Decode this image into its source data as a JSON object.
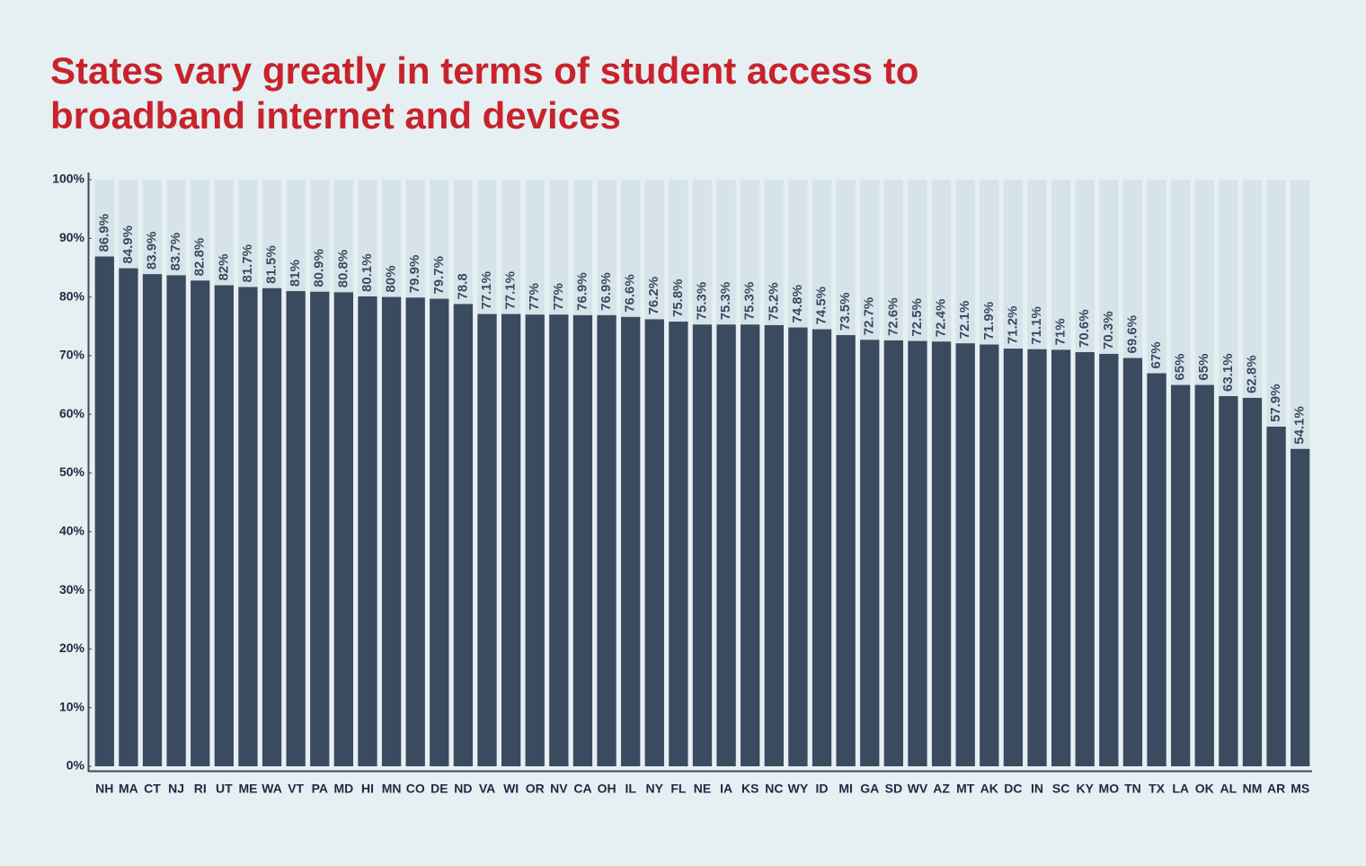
{
  "chart_data": {
    "type": "bar",
    "title": "States vary greatly in terms of student access to broadband internet and devices",
    "categories": [
      "NH",
      "MA",
      "CT",
      "NJ",
      "RI",
      "UT",
      "ME",
      "WA",
      "VT",
      "PA",
      "MD",
      "HI",
      "MN",
      "CO",
      "DE",
      "ND",
      "VA",
      "WI",
      "OR",
      "NV",
      "CA",
      "OH",
      "IL",
      "NY",
      "FL",
      "NE",
      "IA",
      "KS",
      "NC",
      "WY",
      "ID",
      "MI",
      "GA",
      "SD",
      "WV",
      "AZ",
      "MT",
      "AK",
      "DC",
      "IN",
      "SC",
      "KY",
      "MO",
      "TN",
      "TX",
      "LA",
      "OK",
      "AL",
      "NM",
      "AR",
      "MS"
    ],
    "values": [
      86.9,
      84.9,
      83.9,
      83.7,
      82.8,
      82,
      81.7,
      81.5,
      81,
      80.9,
      80.8,
      80.1,
      80,
      79.9,
      79.7,
      78.8,
      77.1,
      77.1,
      77,
      77,
      76.9,
      76.9,
      76.6,
      76.2,
      75.8,
      75.3,
      75.3,
      75.3,
      75.2,
      74.8,
      74.5,
      73.5,
      72.7,
      72.6,
      72.5,
      72.4,
      72.1,
      71.9,
      71.2,
      71.1,
      71,
      70.6,
      70.3,
      69.6,
      67,
      65,
      65,
      63.1,
      62.8,
      57.9,
      54.1
    ],
    "value_labels": [
      "86.9%",
      "84.9%",
      "83.9%",
      "83.7%",
      "82.8%",
      "82%",
      "81.7%",
      "81.5%",
      "81%",
      "80.9%",
      "80.8%",
      "80.1%",
      "80%",
      "79.9%",
      "79.7%",
      "78.8",
      "77.1%",
      "77.1%",
      "77%",
      "77%",
      "76.9%",
      "76.9%",
      "76.6%",
      "76.2%",
      "75.8%",
      "75.3%",
      "75.3%",
      "75.3%",
      "75.2%",
      "74.8%",
      "74.5%",
      "73.5%",
      "72.7%",
      "72.6%",
      "72.5%",
      "72.4%",
      "72.1%",
      "71.9%",
      "71.2%",
      "71.1%",
      "71%",
      "70.6%",
      "70.3%",
      "69.6%",
      "67%",
      "65%",
      "65%",
      "63.1%",
      "62.8%",
      "57.9%",
      "54.1%"
    ],
    "color": "#3a4a5f",
    "ylim": [
      0,
      100
    ],
    "yticks": [
      {
        "value": 0,
        "label": "0%"
      },
      {
        "value": 10,
        "label": "10%"
      },
      {
        "value": 20,
        "label": "20%"
      },
      {
        "value": 30,
        "label": "30%"
      },
      {
        "value": 40,
        "label": "40%"
      },
      {
        "value": 50,
        "label": "50%"
      },
      {
        "value": 60,
        "label": "60%"
      },
      {
        "value": 70,
        "label": "70%"
      },
      {
        "value": 80,
        "label": "80%"
      },
      {
        "value": 90,
        "label": "90%"
      },
      {
        "value": 100,
        "label": "100%"
      }
    ]
  }
}
